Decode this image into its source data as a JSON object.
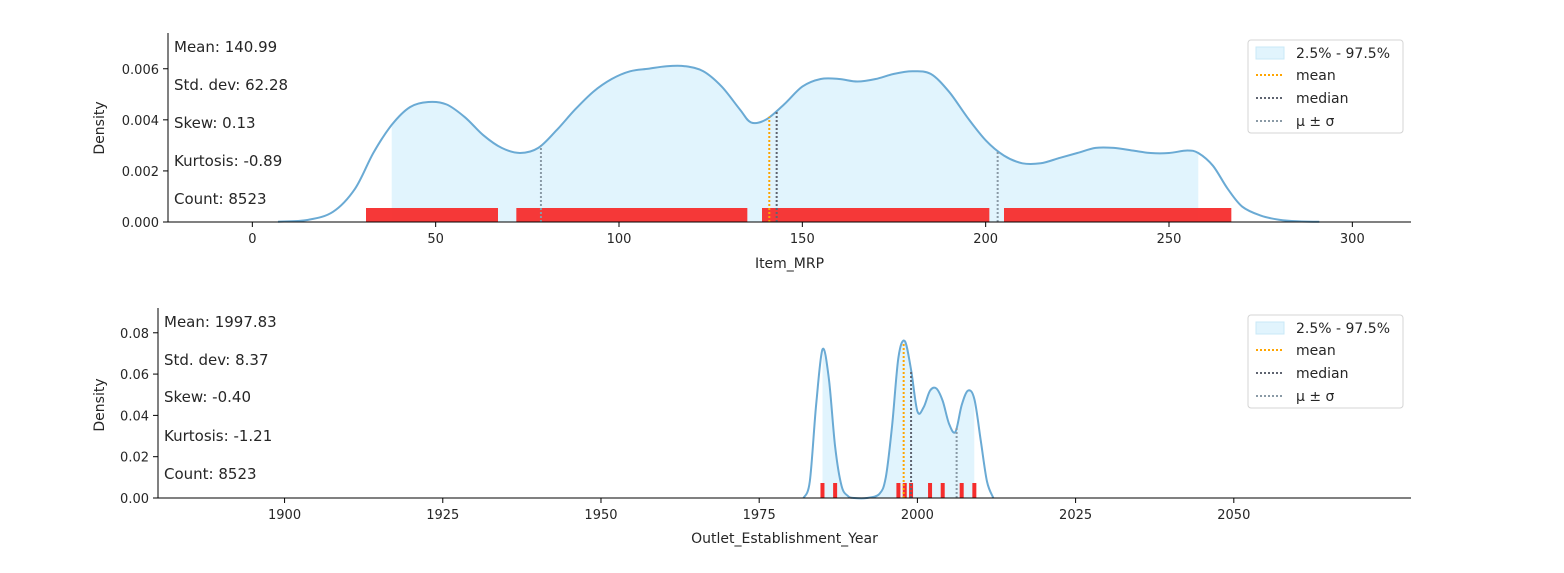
{
  "chart_data": [
    {
      "type": "area",
      "xlabel": "Item_MRP",
      "ylabel": "Density",
      "xlim": [
        -23,
        316
      ],
      "ylim": [
        0,
        0.0074
      ],
      "xticks": [
        0,
        50,
        100,
        150,
        200,
        250,
        300
      ],
      "yticks": [
        0.0,
        0.002,
        0.004,
        0.006
      ],
      "ytick_labels": [
        "0.000",
        "0.002",
        "0.004",
        "0.006"
      ],
      "grid": false,
      "legend_position": "top-right",
      "stats": [
        "Mean: 140.99",
        "Std. dev: 62.28",
        "Skew: 0.13",
        "Kurtosis: -0.89",
        "Count: 8523"
      ],
      "legend": [
        "2.5% - 97.5%",
        "mean",
        "median",
        "μ ± σ"
      ],
      "density": {
        "x": [
          7,
          15,
          22,
          28,
          33,
          38,
          43,
          48,
          53,
          58,
          63,
          68,
          73,
          78,
          83,
          88,
          93,
          98,
          103,
          108,
          113,
          118,
          123,
          128,
          133,
          136,
          140,
          145,
          150,
          155,
          160,
          165,
          170,
          175,
          180,
          185,
          190,
          195,
          200,
          205,
          210,
          215,
          220,
          225,
          230,
          235,
          240,
          245,
          250,
          255,
          258,
          262,
          266,
          270,
          275,
          280,
          285,
          291
        ],
        "y": [
          1e-05,
          8e-05,
          0.0004,
          0.0013,
          0.0027,
          0.0038,
          0.0045,
          0.0047,
          0.0046,
          0.0041,
          0.0034,
          0.0029,
          0.0027,
          0.0029,
          0.0036,
          0.0044,
          0.0051,
          0.0056,
          0.0059,
          0.006,
          0.0061,
          0.0061,
          0.0059,
          0.0053,
          0.0044,
          0.0039,
          0.004,
          0.0046,
          0.0053,
          0.0056,
          0.0056,
          0.0055,
          0.0056,
          0.0058,
          0.0059,
          0.0058,
          0.0051,
          0.0041,
          0.0032,
          0.0026,
          0.0023,
          0.0023,
          0.0025,
          0.0027,
          0.0029,
          0.0029,
          0.0028,
          0.0027,
          0.0027,
          0.0028,
          0.0027,
          0.0022,
          0.0013,
          0.0006,
          0.00025,
          9e-05,
          3e-05,
          1e-05
        ]
      },
      "band": [
        38,
        258
      ],
      "mean": 140.99,
      "median": 143,
      "sigma_lines": [
        78.71,
        203.27
      ],
      "rug_segments": [
        [
          31,
          67
        ],
        [
          72,
          135
        ],
        [
          139,
          201
        ],
        [
          205,
          267
        ]
      ]
    },
    {
      "type": "area",
      "xlabel": "Outlet_Establishment_Year",
      "ylabel": "Density",
      "xlim": [
        1880,
        2078
      ],
      "ylim": [
        0,
        0.092
      ],
      "xticks": [
        1900,
        1925,
        1950,
        1975,
        2000,
        2025,
        2050
      ],
      "yticks": [
        0.0,
        0.02,
        0.04,
        0.06,
        0.08
      ],
      "ytick_labels": [
        "0.00",
        "0.02",
        "0.04",
        "0.06",
        "0.08"
      ],
      "grid": false,
      "legend_position": "top-right",
      "stats": [
        "Mean: 1997.83",
        "Std. dev: 8.37",
        "Skew: -0.40",
        "Kurtosis: -1.21",
        "Count: 8523"
      ],
      "legend": [
        "2.5% - 97.5%",
        "mean",
        "median",
        "μ ± σ"
      ],
      "density": {
        "x": [
          1982,
          1983,
          1984,
          1985,
          1986,
          1987,
          1988,
          1989,
          1990,
          1992,
          1994,
          1995,
          1996,
          1997,
          1998,
          1999,
          2000,
          2001,
          2002,
          2003,
          2004,
          2005,
          2006,
          2007,
          2008,
          2009,
          2010,
          2011,
          2012
        ],
        "y": [
          0.0,
          0.008,
          0.045,
          0.072,
          0.058,
          0.025,
          0.006,
          0.001,
          0.0,
          0.0,
          0.002,
          0.01,
          0.035,
          0.068,
          0.076,
          0.062,
          0.042,
          0.044,
          0.052,
          0.053,
          0.047,
          0.036,
          0.032,
          0.045,
          0.052,
          0.048,
          0.028,
          0.008,
          0.0
        ]
      },
      "band": [
        1985,
        2009
      ],
      "mean": 1997.83,
      "median": 1999,
      "sigma_lines": [
        1989.46,
        2006.2
      ],
      "rug_years": [
        1985,
        1987,
        1997,
        1998,
        1999,
        2002,
        2004,
        2007,
        2009
      ]
    }
  ]
}
